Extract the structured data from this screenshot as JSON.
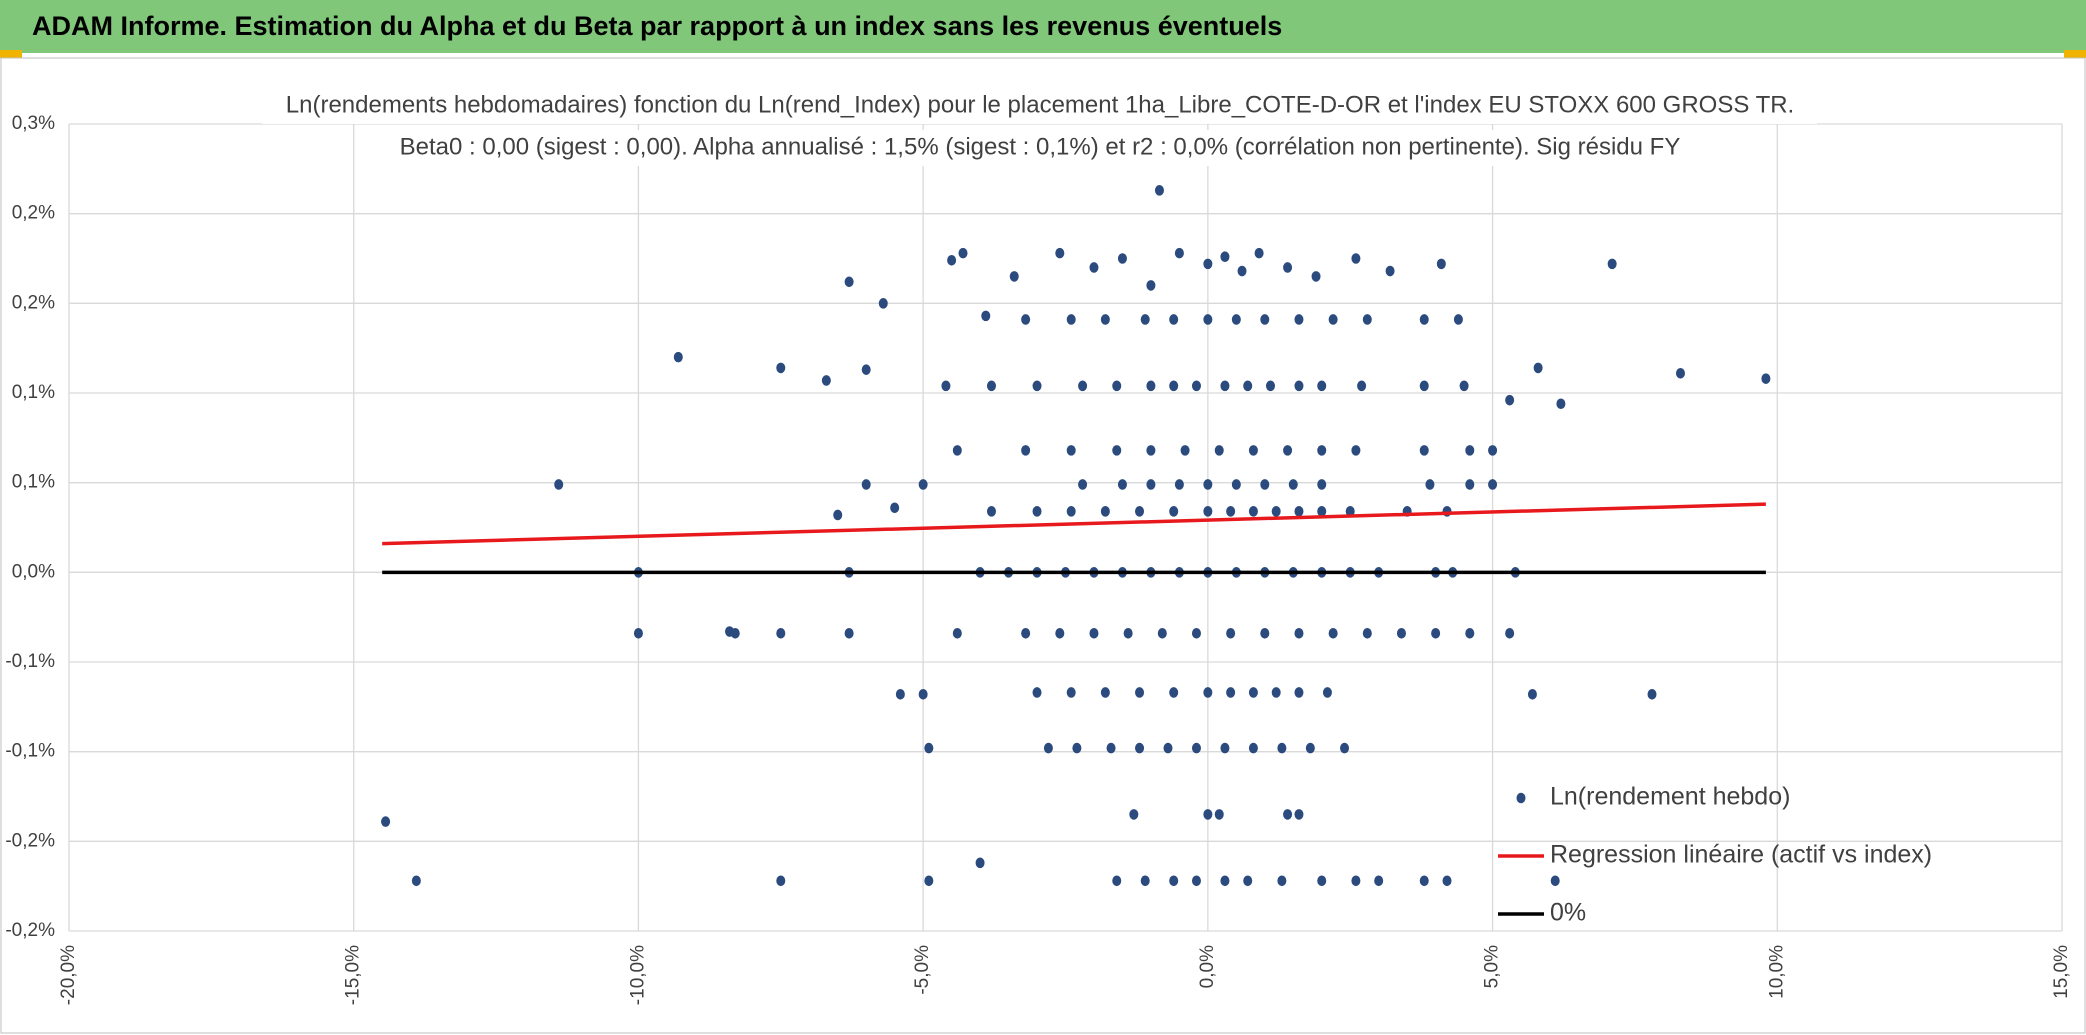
{
  "chart_data": {
    "type": "scatter",
    "header": "ADAM Informe. Estimation du Alpha et du Beta par rapport à un index sans les revenus éventuels",
    "title": "Ln(rendements hebdomadaires) fonction du Ln(rend_Index) pour le placement 1ha_Libre_COTE-D-OR et l'index EU STOXX 600 GROSS TR.",
    "subtitle": "Beta0 : 0,00 (sigest : 0,00). Alpha annualisé : 1,5% (sigest : 0,1%) et r2 : 0,0% (corrélation non pertinente). Sig résidu FY",
    "xlim": [
      -20,
      15
    ],
    "xticks": [
      {
        "value": -20,
        "label": "-20,0%"
      },
      {
        "value": -15,
        "label": "-15,0%"
      },
      {
        "value": -10,
        "label": "-10,0%"
      },
      {
        "value": -5,
        "label": "-5,0%"
      },
      {
        "value": 0,
        "label": "0,0%"
      },
      {
        "value": 5,
        "label": "5,0%"
      },
      {
        "value": 10,
        "label": "10,0%"
      },
      {
        "value": 15,
        "label": "15,0%"
      }
    ],
    "ylim": [
      -0.2,
      0.25
    ],
    "yticks": [
      {
        "value": -0.2,
        "label": "-0,2%"
      },
      {
        "value": -0.15,
        "label": "-0,2%"
      },
      {
        "value": -0.1,
        "label": "-0,1%"
      },
      {
        "value": -0.05,
        "label": "-0,1%"
      },
      {
        "value": 0,
        "label": "0,0%"
      },
      {
        "value": 0.05,
        "label": "0,1%"
      },
      {
        "value": 0.1,
        "label": "0,1%"
      },
      {
        "value": 0.15,
        "label": "0,2%"
      },
      {
        "value": 0.2,
        "label": "0,2%"
      },
      {
        "value": 0.25,
        "label": "0,3%"
      }
    ],
    "grid": true,
    "legend": "bottom-right",
    "series": [
      {
        "name": "Ln(rendement hebdo)",
        "color": "#2b4a7e",
        "style": "markers",
        "x": [
          -14.44,
          -13.9,
          -11.4,
          -9.3,
          -10,
          -10,
          -8.4,
          -7.5,
          -7.5,
          -7.5,
          -6.3,
          -6.0,
          -5.7,
          -6.7,
          -6.5,
          -6.0,
          -5.5,
          -5.0,
          -5.0,
          -5.4,
          -4.9,
          -4.9,
          -4.4,
          -4.5,
          -4.3,
          -4.0,
          -3.9,
          7.1,
          8.3,
          9.8,
          5.8,
          6.2,
          5.3,
          5.7,
          7.8,
          6.1,
          5.4,
          5.0,
          5.0,
          -0.85,
          -6.3,
          -6.3,
          -8.3,
          -4,
          -3.5,
          -3,
          -2.5,
          -2,
          -1.5,
          -1,
          -0.5,
          0,
          0.5,
          1,
          1.5,
          2,
          2.5,
          3,
          4,
          4.3,
          -3.8,
          -3,
          -2.4,
          -1.8,
          -1.2,
          -0.6,
          0,
          0.4,
          0.8,
          1.2,
          1.6,
          2,
          2.5,
          3.5,
          4.2,
          -2.2,
          -1.5,
          -1,
          -0.5,
          0,
          0.5,
          1,
          1.5,
          2,
          3.9,
          4.6,
          -4.4,
          -3.2,
          -2.4,
          -1.6,
          -1,
          -0.4,
          0.2,
          0.8,
          1.4,
          2,
          2.6,
          3.8,
          4.6,
          -4.6,
          -3.8,
          -3,
          -2.2,
          -1.6,
          -1,
          -0.6,
          -0.2,
          0.3,
          0.7,
          1.1,
          1.6,
          2,
          2.7,
          3.8,
          4.5,
          -3.2,
          -2.4,
          -1.8,
          -1.1,
          -0.6,
          0,
          0.5,
          1,
          1.6,
          2.2,
          2.8,
          3.8,
          4.4,
          -3.4,
          -2.6,
          -2,
          -1.5,
          -1,
          -0.5,
          0,
          0.3,
          0.6,
          0.9,
          1.4,
          1.9,
          2.6,
          3.2,
          4.1,
          -3.2,
          -2.6,
          -2,
          -1.4,
          -0.8,
          -0.2,
          0.4,
          1,
          1.6,
          2.2,
          2.8,
          3.4,
          4,
          4.6,
          5.3,
          -3,
          -2.4,
          -1.8,
          -1.2,
          -0.6,
          0,
          0.4,
          0.8,
          1.2,
          1.6,
          2.1,
          -2.8,
          -2.3,
          -1.7,
          -1.2,
          -0.7,
          -0.2,
          0.3,
          0.8,
          1.3,
          1.8,
          2.4,
          -1.3,
          0,
          0.2,
          1.4,
          1.6,
          -1.6,
          -1.1,
          -0.6,
          -0.2,
          0.3,
          0.7,
          1.3,
          2,
          2.6,
          3,
          3.8,
          4.2
        ],
        "values": [
          -0.139,
          -0.172,
          0.049,
          0.12,
          0,
          -0.034,
          -0.033,
          0.114,
          -0.034,
          -0.172,
          0.162,
          0.113,
          0.15,
          0.107,
          0.032,
          0.049,
          0.036,
          0.049,
          -0.068,
          -0.068,
          -0.098,
          -0.172,
          -0.034,
          0.174,
          0.178,
          -0.162,
          0.143,
          0.172,
          0.111,
          0.108,
          0.114,
          0.094,
          0.096,
          -0.068,
          -0.068,
          -0.172,
          0,
          0.068,
          0.049,
          0.213,
          0,
          -0.034,
          -0.034,
          0,
          0,
          0,
          0,
          0,
          0,
          0,
          0,
          0,
          0,
          0,
          0,
          0,
          0,
          0,
          0,
          0,
          0.034,
          0.034,
          0.034,
          0.034,
          0.034,
          0.034,
          0.034,
          0.034,
          0.034,
          0.034,
          0.034,
          0.034,
          0.034,
          0.034,
          0.034,
          0.049,
          0.049,
          0.049,
          0.049,
          0.049,
          0.049,
          0.049,
          0.049,
          0.049,
          0.049,
          0.049,
          0.068,
          0.068,
          0.068,
          0.068,
          0.068,
          0.068,
          0.068,
          0.068,
          0.068,
          0.068,
          0.068,
          0.068,
          0.068,
          0.104,
          0.104,
          0.104,
          0.104,
          0.104,
          0.104,
          0.104,
          0.104,
          0.104,
          0.104,
          0.104,
          0.104,
          0.104,
          0.104,
          0.104,
          0.104,
          0.141,
          0.141,
          0.141,
          0.141,
          0.141,
          0.141,
          0.141,
          0.141,
          0.141,
          0.141,
          0.141,
          0.141,
          0.141,
          0.165,
          0.178,
          0.17,
          0.175,
          0.16,
          0.178,
          0.172,
          0.176,
          0.168,
          0.178,
          0.17,
          0.165,
          0.175,
          0.168,
          0.172,
          -0.034,
          -0.034,
          -0.034,
          -0.034,
          -0.034,
          -0.034,
          -0.034,
          -0.034,
          -0.034,
          -0.034,
          -0.034,
          -0.034,
          -0.034,
          -0.034,
          -0.034,
          -0.067,
          -0.067,
          -0.067,
          -0.067,
          -0.067,
          -0.067,
          -0.067,
          -0.067,
          -0.067,
          -0.067,
          -0.067,
          -0.098,
          -0.098,
          -0.098,
          -0.098,
          -0.098,
          -0.098,
          -0.098,
          -0.098,
          -0.098,
          -0.098,
          -0.098,
          -0.135,
          -0.135,
          -0.135,
          -0.135,
          -0.135,
          -0.172,
          -0.172,
          -0.172,
          -0.172,
          -0.172,
          -0.172,
          -0.172,
          -0.172,
          -0.172,
          -0.172,
          -0.172,
          -0.172
        ]
      },
      {
        "name": "Regression linéaire (actif vs index)",
        "color": "#e8191c",
        "style": "line",
        "x": [
          -14.5,
          9.8
        ],
        "values": [
          0.016,
          0.038
        ]
      },
      {
        "name": "0%",
        "color": "#000000",
        "style": "line",
        "x": [
          -14.5,
          9.8
        ],
        "values": [
          0,
          0
        ]
      }
    ]
  }
}
